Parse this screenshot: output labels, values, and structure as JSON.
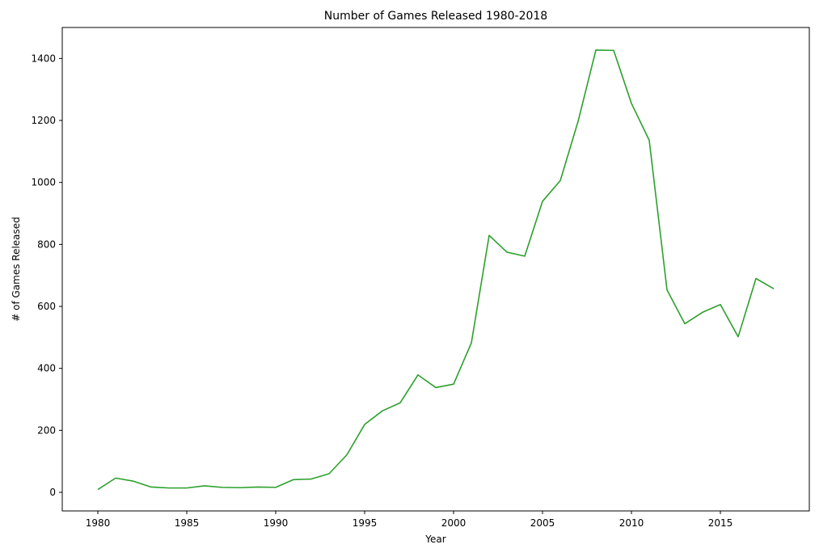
{
  "chart_data": {
    "type": "line",
    "title": "Number of Games Released 1980-2018",
    "xlabel": "Year",
    "ylabel": "# of Games Released",
    "xlim": [
      1978,
      2020
    ],
    "ylim": [
      -60,
      1500
    ],
    "xticks": [
      1980,
      1985,
      1990,
      1995,
      2000,
      2005,
      2010,
      2015
    ],
    "yticks": [
      0,
      200,
      400,
      600,
      800,
      1000,
      1200,
      1400
    ],
    "grid": false,
    "series": [
      {
        "color": "#2ca02c",
        "x": [
          1980,
          1981,
          1982,
          1983,
          1984,
          1985,
          1986,
          1987,
          1988,
          1989,
          1990,
          1991,
          1992,
          1993,
          1994,
          1995,
          1996,
          1997,
          1998,
          1999,
          2000,
          2001,
          2002,
          2003,
          2004,
          2005,
          2006,
          2007,
          2008,
          2009,
          2010,
          2011,
          2012,
          2013,
          2014,
          2015,
          2016,
          2017,
          2018
        ],
        "y": [
          9,
          46,
          36,
          17,
          14,
          14,
          21,
          16,
          15,
          17,
          16,
          41,
          43,
          60,
          121,
          219,
          263,
          289,
          379,
          338,
          349,
          482,
          829,
          775,
          762,
          939,
          1006,
          1197,
          1427,
          1426,
          1255,
          1136,
          653,
          544,
          581,
          606,
          502,
          690,
          657
        ]
      }
    ]
  }
}
